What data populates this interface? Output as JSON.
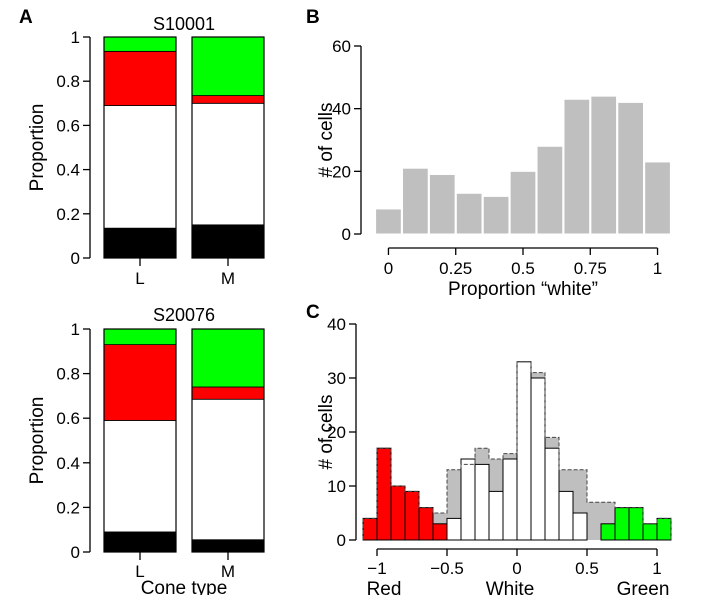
{
  "colors": {
    "red": "#ff0000",
    "green": "#00ff00",
    "white": "#ffffff",
    "black": "#000000",
    "gray": "#bfbfbf",
    "axis": "#000000"
  },
  "chart_data": [
    {
      "panel": "A",
      "type": "bar",
      "stacked": true,
      "title": "S10001",
      "xlabel": "",
      "ylabel": "Proportion",
      "categories": [
        "L",
        "M"
      ],
      "ylim": [
        0,
        1
      ],
      "yticks": [
        0,
        0.2,
        0.4,
        0.6,
        0.8,
        1
      ],
      "ytick_labels": [
        "0",
        "0.2",
        "0.4",
        "0.6",
        "0.8",
        "1"
      ],
      "series": [
        {
          "color": "black",
          "values": [
            0.135,
            0.15
          ]
        },
        {
          "color": "white",
          "values": [
            0.555,
            0.55
          ]
        },
        {
          "color": "red",
          "values": [
            0.245,
            0.035
          ]
        },
        {
          "color": "green",
          "values": [
            0.065,
            0.265
          ]
        }
      ]
    },
    {
      "panel": "",
      "type": "bar",
      "stacked": true,
      "title": "S20076",
      "xlabel": "Cone type",
      "ylabel": "Proportion",
      "categories": [
        "L",
        "M"
      ],
      "ylim": [
        0,
        1
      ],
      "yticks": [
        0,
        0.2,
        0.4,
        0.6,
        0.8,
        1
      ],
      "ytick_labels": [
        "0",
        "0.2",
        "0.4",
        "0.6",
        "0.8",
        "1"
      ],
      "series": [
        {
          "color": "black",
          "values": [
            0.09,
            0.055
          ]
        },
        {
          "color": "white",
          "values": [
            0.5,
            0.63
          ]
        },
        {
          "color": "red",
          "values": [
            0.34,
            0.055
          ]
        },
        {
          "color": "green",
          "values": [
            0.07,
            0.26
          ]
        }
      ]
    },
    {
      "panel": "B",
      "type": "bar",
      "histogram": true,
      "title": "",
      "xlabel": "Proportion “white”",
      "ylabel": "# of cells",
      "xlim": [
        -0.05,
        1.05
      ],
      "ylim": [
        0,
        60
      ],
      "xticks": [
        0,
        0.25,
        0.5,
        0.75,
        1
      ],
      "xtick_labels": [
        "0",
        "0.25",
        "0.5",
        "0.75",
        "1"
      ],
      "yticks": [
        0,
        20,
        40,
        60
      ],
      "ytick_labels": [
        "0",
        "20",
        "40",
        "60"
      ],
      "bin_edges": [
        -0.05,
        0.05,
        0.15,
        0.25,
        0.35,
        0.45,
        0.55,
        0.65,
        0.75,
        0.85,
        0.95,
        1.05
      ],
      "values": [
        8,
        21,
        19,
        13,
        12,
        20,
        28,
        43,
        44,
        42,
        23
      ],
      "color": "gray"
    },
    {
      "panel": "C",
      "type": "bar",
      "histogram": true,
      "title": "",
      "xlabel": "",
      "ylabel": "# of cells",
      "xlim": [
        -1.1,
        1.1
      ],
      "ylim": [
        0,
        40
      ],
      "xticks": [
        -1,
        -0.5,
        0,
        0.5,
        1
      ],
      "xtick_labels": [
        "−1",
        "−0.5",
        "0",
        "0.5",
        "1"
      ],
      "yticks": [
        0,
        10,
        20,
        30,
        40
      ],
      "ytick_labels": [
        "0",
        "10",
        "20",
        "30",
        "40"
      ],
      "category_labels": [
        "Red",
        "White",
        "Green"
      ],
      "bin_edges": [
        -1.1,
        -1.0,
        -0.9,
        -0.8,
        -0.7,
        -0.6,
        -0.5,
        -0.4,
        -0.3,
        -0.2,
        -0.1,
        0.0,
        0.1,
        0.2,
        0.3,
        0.4,
        0.5,
        0.6,
        0.7,
        0.8,
        0.9,
        1.0,
        1.1
      ],
      "series": [
        {
          "kind": "total",
          "style": "dashed-outline",
          "color": "gray",
          "values": [
            4,
            17,
            10,
            9,
            6,
            5,
            13,
            14,
            17,
            15,
            16,
            33,
            31,
            19,
            13,
            13,
            7,
            7,
            6,
            6,
            3,
            4
          ]
        },
        {
          "color": "red",
          "values": [
            4,
            17,
            10,
            9,
            6,
            3,
            0,
            0,
            0,
            0,
            0,
            0,
            0,
            0,
            0,
            0,
            0,
            0,
            0,
            0,
            0,
            0
          ]
        },
        {
          "color": "white",
          "values": [
            0,
            0,
            0,
            0,
            0,
            0,
            4,
            15,
            14,
            9,
            15,
            33,
            30,
            17,
            9,
            5,
            0,
            0,
            0,
            0,
            0,
            0
          ]
        },
        {
          "color": "green",
          "values": [
            0,
            0,
            0,
            0,
            0,
            0,
            0,
            0,
            0,
            0,
            0,
            0,
            0,
            0,
            0,
            0,
            0,
            3,
            6,
            6,
            3,
            4
          ]
        }
      ]
    }
  ]
}
